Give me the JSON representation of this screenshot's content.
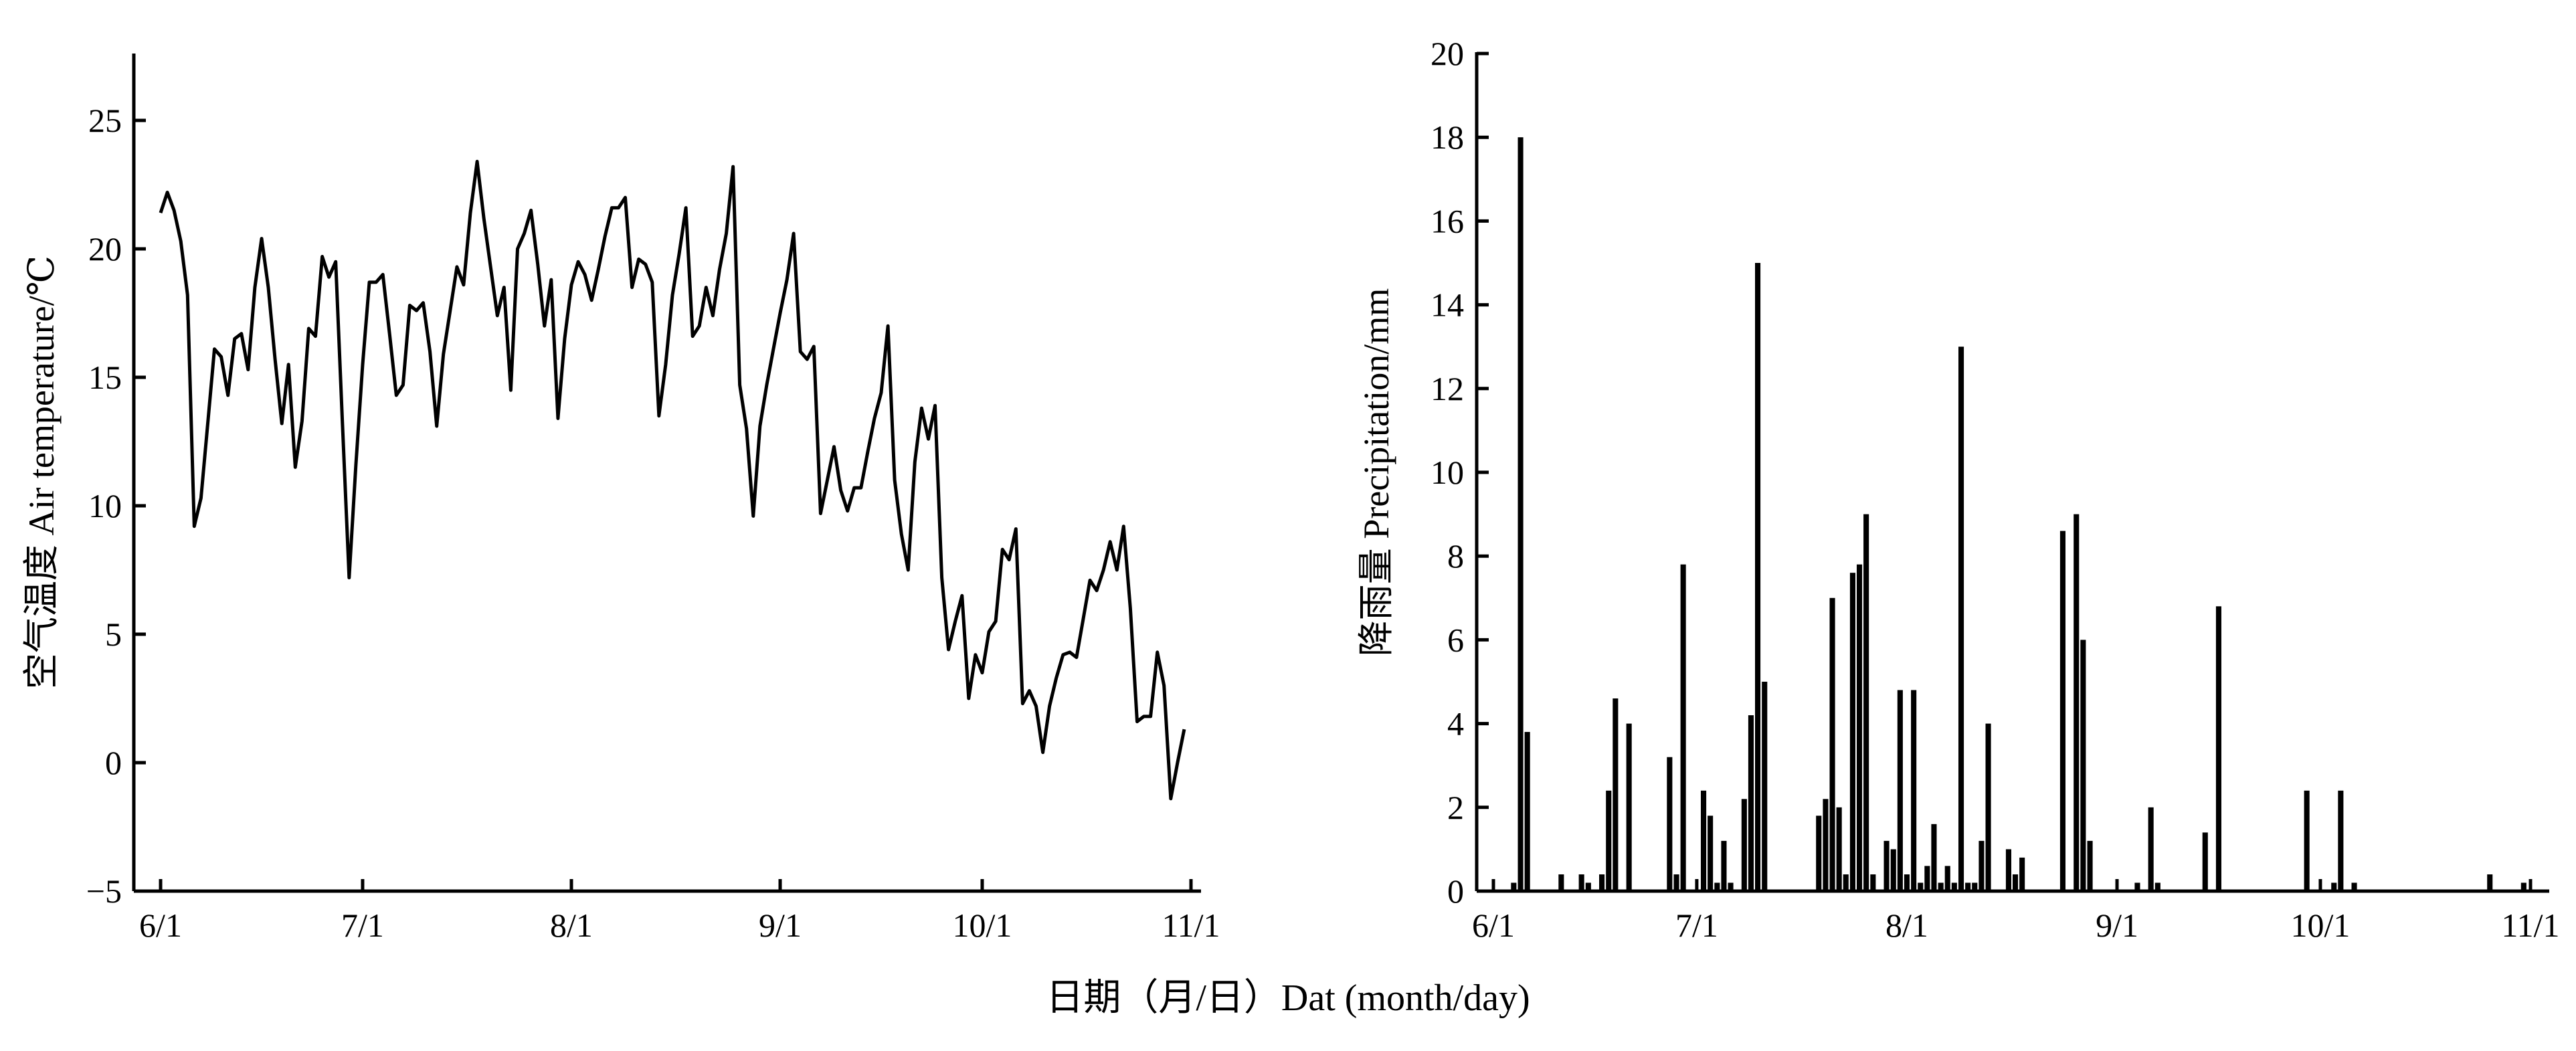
{
  "xlabel": "日期（月/日）Dat (month/day)",
  "charts": [
    {
      "type": "line",
      "ylabel": "空气温度 Air temperature/℃",
      "x_ticks": [
        "6/1",
        "7/1",
        "8/1",
        "9/1",
        "10/1",
        "11/1"
      ],
      "y_ticks": [
        "25",
        "20",
        "15",
        "10",
        "5",
        "0",
        "−5"
      ],
      "ylim": [
        -5,
        27
      ],
      "xlim_days": [
        0,
        153
      ]
    },
    {
      "type": "bar",
      "ylabel": "降雨量 Precipitation/mm",
      "x_ticks": [
        "6/1",
        "7/1",
        "8/1",
        "9/1",
        "10/1",
        "11/1"
      ],
      "y_ticks": [
        "20",
        "18",
        "16",
        "14",
        "12",
        "10",
        "8",
        "6",
        "4",
        "2",
        "0"
      ],
      "ylim": [
        0,
        20
      ],
      "xlim_days": [
        0,
        153
      ]
    }
  ],
  "chart_data": [
    {
      "type": "line",
      "ylabel": "空气温度 Air temperature/℃",
      "ylim": [
        -5,
        27
      ],
      "x_axis": "date (month/day), 2016-06-01 to 2016-10-31",
      "x_ticks": [
        "6/1",
        "7/1",
        "8/1",
        "9/1",
        "10/1",
        "11/1"
      ],
      "x": [
        "6/1",
        "6/2",
        "6/3",
        "6/4",
        "6/5",
        "6/6",
        "6/7",
        "6/8",
        "6/9",
        "6/10",
        "6/11",
        "6/12",
        "6/13",
        "6/14",
        "6/15",
        "6/16",
        "6/17",
        "6/18",
        "6/19",
        "6/20",
        "6/21",
        "6/22",
        "6/23",
        "6/24",
        "6/25",
        "6/26",
        "6/27",
        "6/28",
        "6/29",
        "6/30",
        "7/1",
        "7/2",
        "7/3",
        "7/4",
        "7/5",
        "7/6",
        "7/7",
        "7/8",
        "7/9",
        "7/10",
        "7/11",
        "7/12",
        "7/13",
        "7/14",
        "7/15",
        "7/16",
        "7/17",
        "7/18",
        "7/19",
        "7/20",
        "7/21",
        "7/22",
        "7/23",
        "7/24",
        "7/25",
        "7/26",
        "7/27",
        "7/28",
        "7/29",
        "7/30",
        "7/31",
        "8/1",
        "8/2",
        "8/3",
        "8/4",
        "8/5",
        "8/6",
        "8/7",
        "8/8",
        "8/9",
        "8/10",
        "8/11",
        "8/12",
        "8/13",
        "8/14",
        "8/15",
        "8/16",
        "8/17",
        "8/18",
        "8/19",
        "8/20",
        "8/21",
        "8/22",
        "8/23",
        "8/24",
        "8/25",
        "8/26",
        "8/27",
        "8/28",
        "8/29",
        "8/30",
        "8/31",
        "9/1",
        "9/2",
        "9/3",
        "9/4",
        "9/5",
        "9/6",
        "9/7",
        "9/8",
        "9/9",
        "9/10",
        "9/11",
        "9/12",
        "9/13",
        "9/14",
        "9/15",
        "9/16",
        "9/17",
        "9/18",
        "9/19",
        "9/20",
        "9/21",
        "9/22",
        "9/23",
        "9/24",
        "9/25",
        "9/26",
        "9/27",
        "9/28",
        "9/29",
        "9/30",
        "10/1",
        "10/2",
        "10/3",
        "10/4",
        "10/5",
        "10/6",
        "10/7",
        "10/8",
        "10/9",
        "10/10",
        "10/11",
        "10/12",
        "10/13",
        "10/14",
        "10/15",
        "10/16",
        "10/17",
        "10/18",
        "10/19",
        "10/20",
        "10/21",
        "10/22",
        "10/23",
        "10/24",
        "10/25",
        "10/26",
        "10/27",
        "10/28",
        "10/29",
        "10/30",
        "10/31"
      ],
      "values": [
        21.4,
        22.2,
        21.5,
        20.3,
        18.2,
        9.2,
        10.3,
        13.2,
        16.1,
        15.8,
        14.3,
        16.5,
        16.7,
        15.3,
        18.5,
        20.4,
        18.5,
        15.7,
        13.2,
        15.5,
        11.5,
        13.3,
        16.9,
        16.6,
        19.7,
        18.9,
        19.5,
        13.2,
        7.2,
        11.6,
        15.5,
        18.7,
        18.7,
        19.0,
        16.7,
        14.3,
        14.7,
        17.8,
        17.6,
        17.9,
        16.0,
        13.1,
        15.9,
        17.6,
        19.3,
        18.6,
        21.4,
        23.4,
        21.2,
        19.3,
        17.4,
        18.5,
        14.5,
        20.0,
        20.6,
        21.5,
        19.4,
        17.0,
        18.8,
        13.4,
        16.5,
        18.6,
        19.5,
        19.0,
        18.0,
        19.2,
        20.5,
        21.6,
        21.6,
        22.0,
        18.5,
        19.6,
        19.4,
        18.7,
        13.5,
        15.5,
        18.2,
        19.8,
        21.6,
        16.6,
        17.0,
        18.5,
        17.4,
        19.2,
        20.6,
        23.2,
        14.7,
        13.0,
        9.6,
        13.1,
        14.7,
        16.1,
        17.5,
        18.8,
        20.6,
        16.0,
        15.7,
        16.2,
        9.7,
        11.0,
        12.3,
        10.6,
        9.8,
        10.7,
        10.7,
        12.1,
        13.4,
        14.4,
        17.0,
        11.0,
        8.9,
        7.5,
        11.7,
        13.8,
        12.6,
        13.9,
        7.2,
        4.4,
        5.5,
        6.5,
        2.5,
        4.2,
        3.5,
        5.1,
        5.5,
        8.3,
        7.9,
        9.1,
        2.3,
        2.8,
        2.2,
        0.4,
        2.2,
        3.3,
        4.2,
        4.3,
        4.1,
        5.6,
        7.1,
        6.7,
        7.5,
        8.6,
        7.5,
        9.2,
        6.0,
        1.6,
        1.8,
        1.8,
        4.3,
        3.0,
        -1.4,
        0.0,
        1.3
      ]
    },
    {
      "type": "bar",
      "ylabel": "降雨量 Precipitation/mm",
      "ylim": [
        0,
        20
      ],
      "x_axis": "date (month/day), 2016-06-01 to 2016-10-31",
      "x_ticks": [
        "6/1",
        "7/1",
        "8/1",
        "9/1",
        "10/1",
        "11/1"
      ],
      "x": [
        "6/4",
        "6/5",
        "6/6",
        "6/11",
        "6/14",
        "6/15",
        "6/17",
        "6/18",
        "6/19",
        "6/21",
        "6/27",
        "6/28",
        "6/29",
        "7/2",
        "7/3",
        "7/4",
        "7/5",
        "7/6",
        "7/8",
        "7/9",
        "7/10",
        "7/11",
        "7/19",
        "7/20",
        "7/21",
        "7/22",
        "7/23",
        "7/24",
        "7/25",
        "7/26",
        "7/27",
        "7/29",
        "7/30",
        "7/31",
        "8/1",
        "8/2",
        "8/3",
        "8/4",
        "8/5",
        "8/6",
        "8/7",
        "8/8",
        "8/9",
        "8/10",
        "8/11",
        "8/12",
        "8/13",
        "8/16",
        "8/17",
        "8/18",
        "8/24",
        "8/26",
        "8/27",
        "8/28",
        "9/4",
        "9/6",
        "9/7",
        "9/14",
        "9/16",
        "9/29",
        "10/3",
        "10/4",
        "10/6",
        "10/26",
        "10/31"
      ],
      "values": [
        0.2,
        18.0,
        3.8,
        0.4,
        0.4,
        0.2,
        0.4,
        2.4,
        4.6,
        4.0,
        3.2,
        0.4,
        7.8,
        2.4,
        1.8,
        0.2,
        1.2,
        0.2,
        2.2,
        4.2,
        15.0,
        5.0,
        1.8,
        2.2,
        7.0,
        2.0,
        0.4,
        7.6,
        7.8,
        9.0,
        0.4,
        1.2,
        1.0,
        4.8,
        0.4,
        4.8,
        0.2,
        0.6,
        1.6,
        0.2,
        0.6,
        0.2,
        13.0,
        0.2,
        0.2,
        1.2,
        4.0,
        1.0,
        0.4,
        0.8,
        8.6,
        9.0,
        6.0,
        1.2,
        0.2,
        2.0,
        0.2,
        1.4,
        6.8,
        2.4,
        0.2,
        2.4,
        0.2,
        0.4,
        0.2
      ]
    }
  ]
}
